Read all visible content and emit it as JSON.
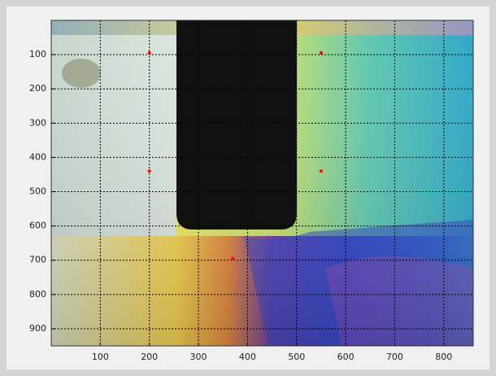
{
  "chart_data": {
    "type": "scatter",
    "x": [
      200,
      550,
      200,
      550,
      370
    ],
    "y": [
      95,
      95,
      440,
      440,
      695
    ],
    "color": "#ff0000",
    "xlim": [
      0,
      860
    ],
    "xticks": [
      100,
      200,
      300,
      400,
      500,
      600,
      700,
      800
    ],
    "ylim": [
      950,
      0
    ],
    "yticks": [
      100,
      200,
      300,
      400,
      500,
      600,
      700,
      800,
      900
    ],
    "grid": true
  }
}
